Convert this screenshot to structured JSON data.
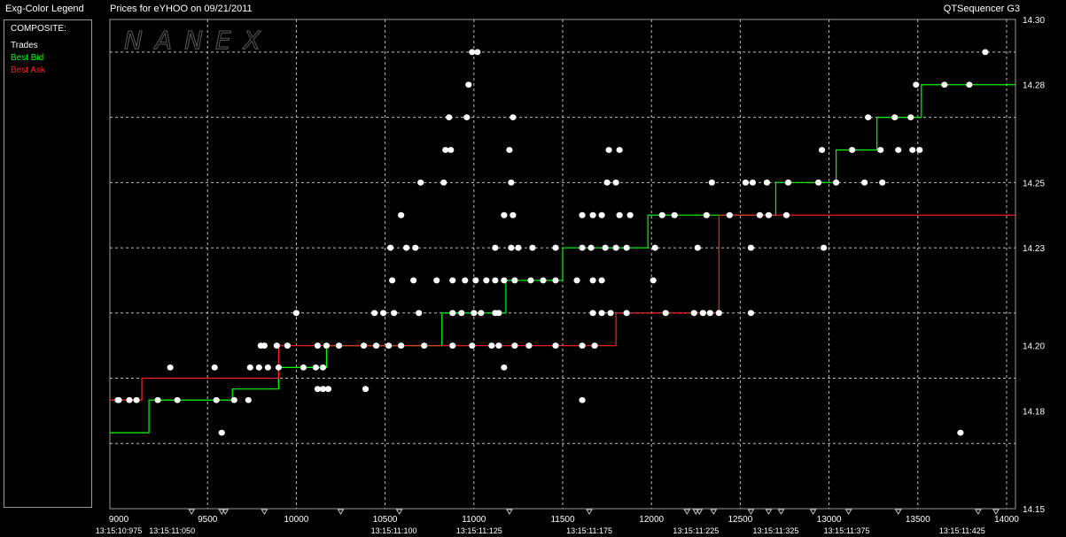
{
  "header": {
    "legend_title": "Exg-Color Legend",
    "chart_title": "Prices for  eYHOO  on  09/21/2011",
    "app_name": "QTSequencer G3"
  },
  "legend": {
    "heading": "COMPOSITE:",
    "items": [
      {
        "label": "Trades",
        "color": "#ffffff"
      },
      {
        "label": "Best Bid",
        "color": "#00ff00"
      },
      {
        "label": "Best Ask",
        "color": "#ff2020"
      }
    ]
  },
  "watermark": "NANEX",
  "chart_data": {
    "type": "scatter",
    "title": "Prices for  eYHOO  on  09/21/2011",
    "xlabel": "",
    "ylabel": "",
    "xlim": [
      8950,
      14050
    ],
    "ylim": [
      14.15,
      14.3
    ],
    "x_ticks": [
      9000,
      9500,
      10000,
      10500,
      11000,
      11500,
      12000,
      12500,
      13000,
      13500,
      14000
    ],
    "y_ticks": [
      14.15,
      14.18,
      14.2,
      14.23,
      14.25,
      14.28,
      14.3
    ],
    "y_tick_labels": [
      "14.15",
      "14.18",
      "14.20",
      "14.23",
      "14.25",
      "14.28",
      "14.30"
    ],
    "y_grid": [
      14.17,
      14.19,
      14.21,
      14.23,
      14.25,
      14.27,
      14.29
    ],
    "time_labels": [
      {
        "x": 9000,
        "label": "13:15:10:975"
      },
      {
        "x": 9300,
        "label": "13:15:11:050"
      },
      {
        "x": 10550,
        "label": "13:15:11:100"
      },
      {
        "x": 11030,
        "label": "13:15:11:125"
      },
      {
        "x": 11650,
        "label": "13:15:11:175"
      },
      {
        "x": 12250,
        "label": "13:15:11:225"
      },
      {
        "x": 12700,
        "label": "13:15:11:325"
      },
      {
        "x": 13100,
        "label": "13:15:11:375"
      },
      {
        "x": 13750,
        "label": "13:15:11:425"
      }
    ],
    "marker_x": [
      9410,
      9580,
      9600,
      9820,
      10250,
      10580,
      11200,
      11650,
      12200,
      12250,
      12270,
      12350,
      12560,
      12660,
      12730,
      12910,
      13110,
      13390,
      13840,
      13940
    ],
    "grid": true,
    "series": [
      {
        "name": "Trades",
        "color": "#ffffff",
        "points": [
          [
            8995,
            14.1833
          ],
          [
            9060,
            14.1833
          ],
          [
            9100,
            14.1833
          ],
          [
            9220,
            14.1833
          ],
          [
            9330,
            14.1833
          ],
          [
            9550,
            14.1833
          ],
          [
            9650,
            14.1833
          ],
          [
            9730,
            14.1833
          ],
          [
            9580,
            14.1733
          ],
          [
            9290,
            14.1933
          ],
          [
            9540,
            14.1933
          ],
          [
            9740,
            14.1933
          ],
          [
            9790,
            14.1933
          ],
          [
            9840,
            14.1933
          ],
          [
            9900,
            14.1933
          ],
          [
            10040,
            14.1933
          ],
          [
            10110,
            14.1933
          ],
          [
            10150,
            14.1933
          ],
          [
            10120,
            14.1867
          ],
          [
            10150,
            14.1867
          ],
          [
            9800,
            14.2
          ],
          [
            9820,
            14.2
          ],
          [
            9890,
            14.2
          ],
          [
            9950,
            14.2
          ],
          [
            10120,
            14.2
          ],
          [
            10170,
            14.2
          ],
          [
            10240,
            14.2
          ],
          [
            10380,
            14.2
          ],
          [
            10450,
            14.2
          ],
          [
            10520,
            14.2
          ],
          [
            10590,
            14.2
          ],
          [
            10720,
            14.2
          ],
          [
            10880,
            14.2
          ],
          [
            10990,
            14.2
          ],
          [
            11100,
            14.2
          ],
          [
            11140,
            14.2
          ],
          [
            11230,
            14.2
          ],
          [
            11310,
            14.2
          ],
          [
            11460,
            14.2
          ],
          [
            11610,
            14.2
          ],
          [
            11680,
            14.2
          ],
          [
            10390,
            14.1867
          ],
          [
            10180,
            14.1867
          ],
          [
            10000,
            14.21
          ],
          [
            10440,
            14.21
          ],
          [
            10490,
            14.21
          ],
          [
            10550,
            14.21
          ],
          [
            10690,
            14.21
          ],
          [
            10880,
            14.21
          ],
          [
            10930,
            14.21
          ],
          [
            11000,
            14.21
          ],
          [
            11040,
            14.21
          ],
          [
            11120,
            14.21
          ],
          [
            11140,
            14.21
          ],
          [
            11670,
            14.21
          ],
          [
            11720,
            14.21
          ],
          [
            11770,
            14.21
          ],
          [
            11860,
            14.21
          ],
          [
            12080,
            14.21
          ],
          [
            12240,
            14.21
          ],
          [
            12290,
            14.21
          ],
          [
            12330,
            14.21
          ],
          [
            12380,
            14.21
          ],
          [
            12560,
            14.21
          ],
          [
            10540,
            14.22
          ],
          [
            10660,
            14.22
          ],
          [
            10790,
            14.22
          ],
          [
            10880,
            14.22
          ],
          [
            10950,
            14.22
          ],
          [
            11010,
            14.22
          ],
          [
            11070,
            14.22
          ],
          [
            11120,
            14.22
          ],
          [
            11170,
            14.22
          ],
          [
            11230,
            14.22
          ],
          [
            11320,
            14.22
          ],
          [
            11390,
            14.22
          ],
          [
            11460,
            14.22
          ],
          [
            11580,
            14.22
          ],
          [
            11670,
            14.22
          ],
          [
            11720,
            14.22
          ],
          [
            12010,
            14.22
          ],
          [
            10530,
            14.23
          ],
          [
            10620,
            14.23
          ],
          [
            10670,
            14.23
          ],
          [
            11120,
            14.23
          ],
          [
            11210,
            14.23
          ],
          [
            11250,
            14.23
          ],
          [
            11330,
            14.23
          ],
          [
            11460,
            14.23
          ],
          [
            11610,
            14.23
          ],
          [
            11660,
            14.23
          ],
          [
            11740,
            14.23
          ],
          [
            11800,
            14.23
          ],
          [
            11860,
            14.23
          ],
          [
            12020,
            14.23
          ],
          [
            12260,
            14.23
          ],
          [
            12560,
            14.23
          ],
          [
            12970,
            14.23
          ],
          [
            10590,
            14.24
          ],
          [
            11170,
            14.24
          ],
          [
            11220,
            14.24
          ],
          [
            11610,
            14.24
          ],
          [
            11670,
            14.24
          ],
          [
            11720,
            14.24
          ],
          [
            11820,
            14.24
          ],
          [
            11880,
            14.24
          ],
          [
            12060,
            14.24
          ],
          [
            12130,
            14.24
          ],
          [
            12310,
            14.24
          ],
          [
            12440,
            14.24
          ],
          [
            12610,
            14.24
          ],
          [
            12660,
            14.24
          ],
          [
            12760,
            14.24
          ],
          [
            10700,
            14.25
          ],
          [
            10830,
            14.25
          ],
          [
            11210,
            14.25
          ],
          [
            11750,
            14.25
          ],
          [
            11800,
            14.25
          ],
          [
            12340,
            14.25
          ],
          [
            12530,
            14.25
          ],
          [
            12570,
            14.25
          ],
          [
            12650,
            14.25
          ],
          [
            12770,
            14.25
          ],
          [
            12940,
            14.25
          ],
          [
            13040,
            14.25
          ],
          [
            13200,
            14.25
          ],
          [
            13300,
            14.25
          ],
          [
            10840,
            14.26
          ],
          [
            10870,
            14.26
          ],
          [
            11200,
            14.26
          ],
          [
            11760,
            14.26
          ],
          [
            11820,
            14.26
          ],
          [
            12960,
            14.26
          ],
          [
            13130,
            14.26
          ],
          [
            13290,
            14.26
          ],
          [
            13390,
            14.26
          ],
          [
            13470,
            14.26
          ],
          [
            13510,
            14.26
          ],
          [
            10860,
            14.27
          ],
          [
            10960,
            14.27
          ],
          [
            11220,
            14.27
          ],
          [
            13220,
            14.27
          ],
          [
            13370,
            14.27
          ],
          [
            13460,
            14.27
          ],
          [
            10970,
            14.28
          ],
          [
            13490,
            14.28
          ],
          [
            13650,
            14.28
          ],
          [
            13790,
            14.28
          ],
          [
            10990,
            14.29
          ],
          [
            11020,
            14.29
          ],
          [
            13880,
            14.29
          ],
          [
            13740,
            14.1733
          ],
          [
            9000,
            14.1833
          ],
          [
            11170,
            14.1933
          ],
          [
            11610,
            14.1833
          ]
        ]
      },
      {
        "name": "Best Bid",
        "color": "#00ff00",
        "steps": [
          [
            8950,
            14.1733
          ],
          [
            9170,
            14.1833
          ],
          [
            9640,
            14.1867
          ],
          [
            9900,
            14.1933
          ],
          [
            10170,
            14.2
          ],
          [
            10820,
            14.21
          ],
          [
            11180,
            14.22
          ],
          [
            11500,
            14.23
          ],
          [
            11980,
            14.24
          ],
          [
            12700,
            14.25
          ],
          [
            13040,
            14.26
          ],
          [
            13270,
            14.27
          ],
          [
            13520,
            14.28
          ],
          [
            14050,
            14.28
          ]
        ]
      },
      {
        "name": "Best Ask",
        "color": "#ff2020",
        "steps": [
          [
            8950,
            14.1833
          ],
          [
            9040,
            14.1833
          ],
          [
            9130,
            14.19
          ],
          [
            9370,
            14.19
          ],
          [
            9900,
            14.2
          ],
          [
            10170,
            14.2
          ],
          [
            11800,
            14.21
          ],
          [
            12380,
            14.24
          ],
          [
            14050,
            14.24
          ]
        ]
      }
    ]
  }
}
